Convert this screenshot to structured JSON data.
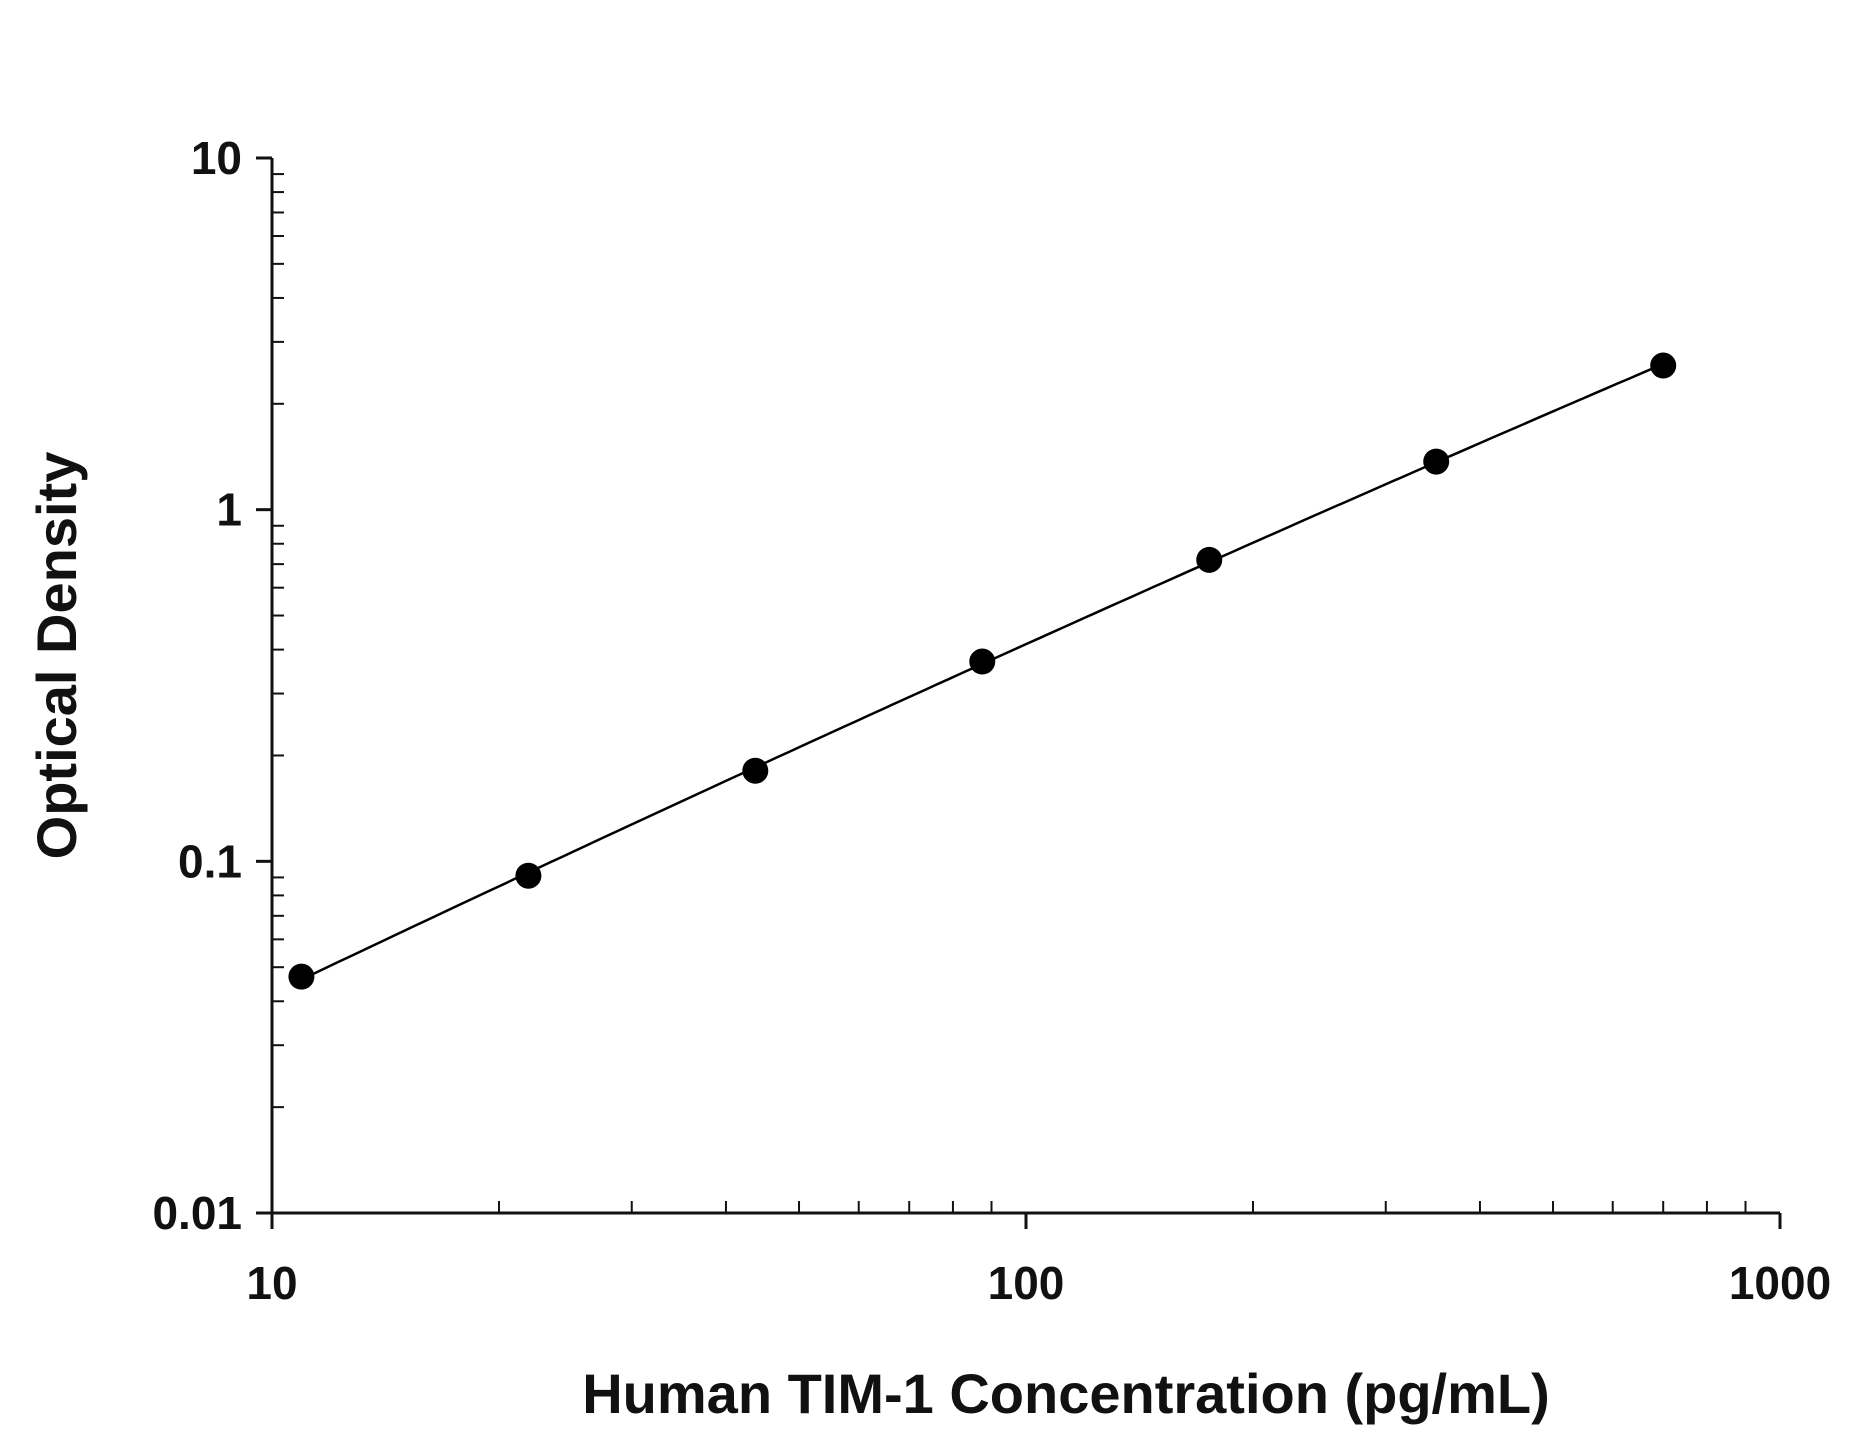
{
  "chart_data": {
    "type": "scatter",
    "title": "",
    "xlabel": "Human TIM-1 Concentration (pg/mL)",
    "ylabel": "Optical Density",
    "x_scale": "log",
    "y_scale": "log",
    "xlim": [
      10,
      1000
    ],
    "ylim": [
      0.01,
      10
    ],
    "x_ticks": [
      "10",
      "100",
      "1000"
    ],
    "y_ticks": [
      "0.01",
      "0.1",
      "1",
      "10"
    ],
    "grid": false,
    "legend": "none",
    "marker_color": "#000000",
    "line_color": "#000000",
    "series": [
      {
        "x": [
          10.94,
          21.88,
          43.75,
          87.5,
          175,
          350,
          700
        ],
        "y": [
          0.047,
          0.091,
          0.181,
          0.37,
          0.72,
          1.37,
          2.57
        ]
      }
    ]
  }
}
